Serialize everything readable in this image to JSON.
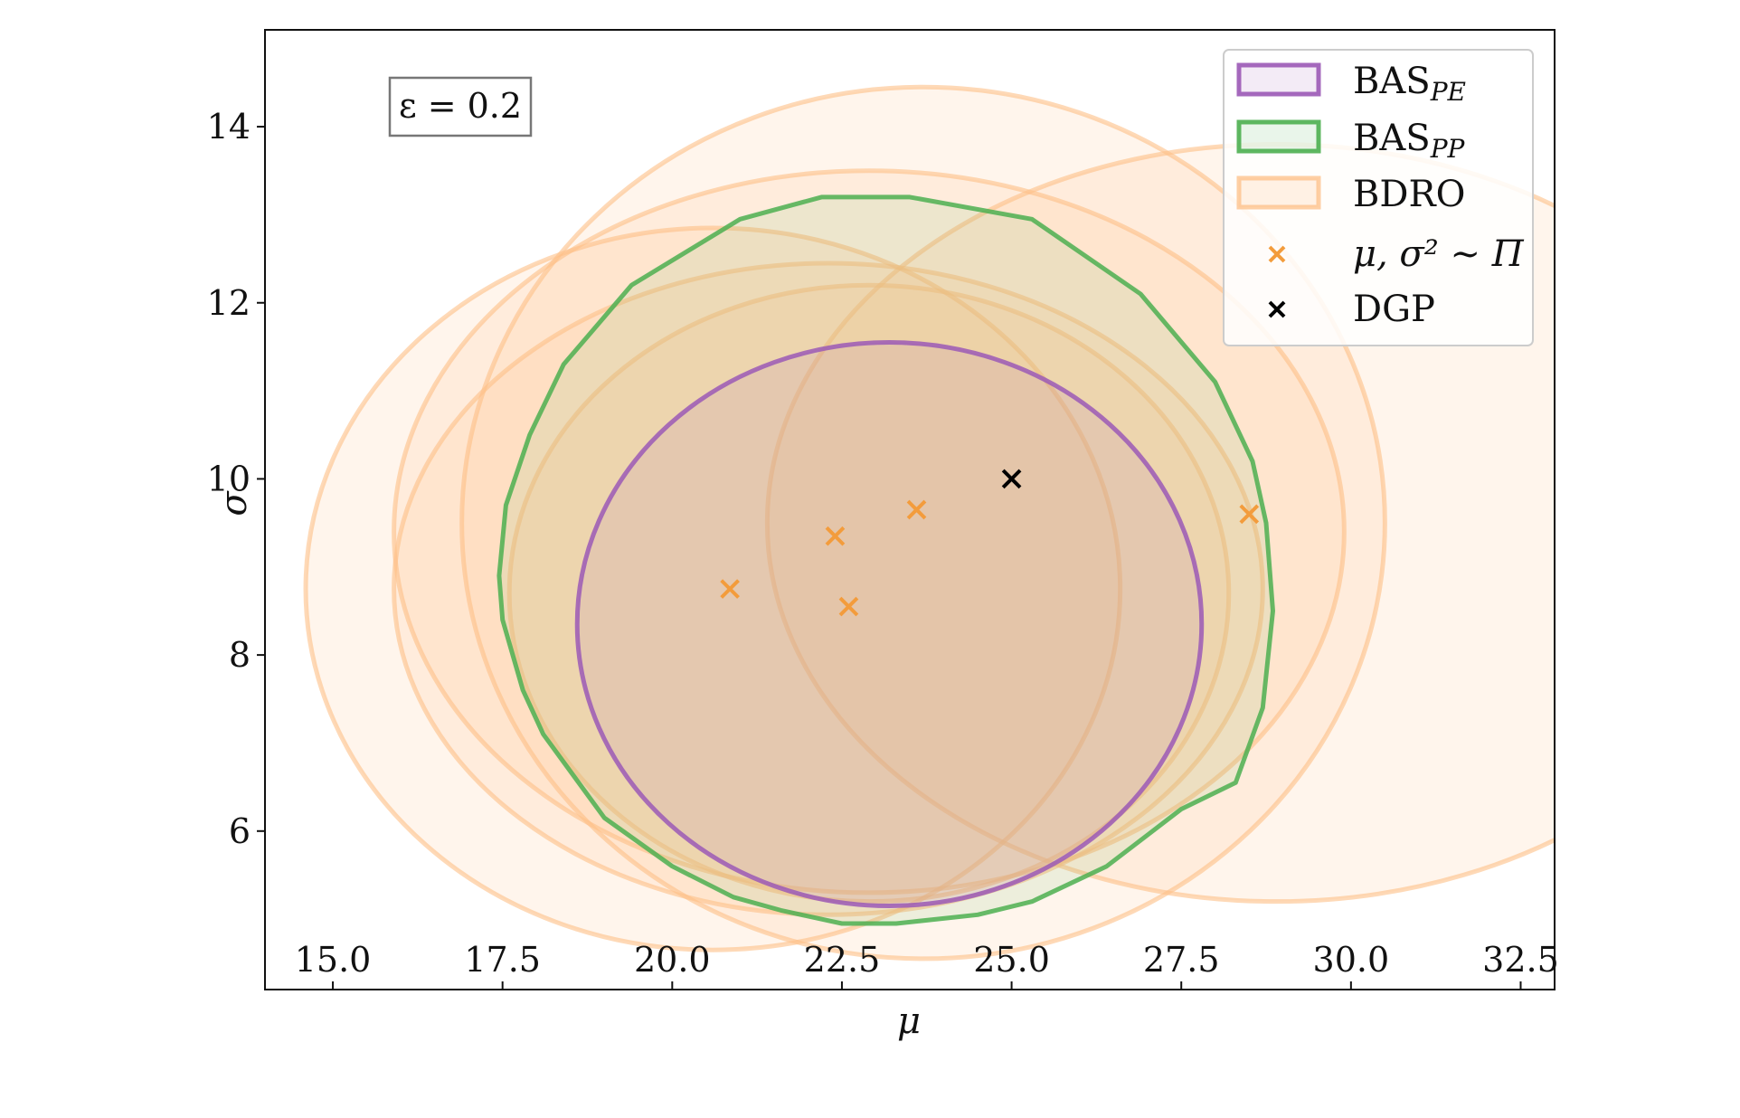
{
  "chart_data": {
    "type": "scatter",
    "title": "",
    "xlabel": "μ",
    "ylabel": "σ",
    "xlim": [
      14.0,
      33.0
    ],
    "ylim": [
      4.2,
      15.1
    ],
    "xticks": [
      15.0,
      17.5,
      20.0,
      22.5,
      25.0,
      27.5,
      30.0,
      32.5
    ],
    "xtick_labels": [
      "15.0",
      "17.5",
      "20.0",
      "22.5",
      "25.0",
      "27.5",
      "30.0",
      "32.5"
    ],
    "yticks": [
      6,
      8,
      10,
      12,
      14
    ],
    "ytick_labels": [
      "6",
      "8",
      "10",
      "12",
      "14"
    ],
    "grid": false,
    "legend_position": "top-right",
    "annotation": "ε = 0.2",
    "legend": {
      "bas_pe": "BAS",
      "bas_pe_sub": "PE",
      "bas_pp": "BAS",
      "bas_pp_sub": "PP",
      "bdro": "BDRO",
      "samples": "μ, σ² ∼ Π",
      "dgp": "DGP"
    },
    "colors": {
      "bas_pe": "#9b59b6",
      "bas_pp": "#4caf50",
      "bdro": "#fdbf87",
      "samples": "#f39c3c",
      "dgp": "#000000"
    },
    "regions": {
      "bdro": [
        {
          "cx": 20.6,
          "cy": 8.75,
          "rx": 6.0,
          "ry": 4.1
        },
        {
          "cx": 22.9,
          "cy": 9.4,
          "rx": 7.0,
          "ry": 4.1
        },
        {
          "cx": 23.7,
          "cy": 9.5,
          "rx": 6.8,
          "ry": 4.95
        },
        {
          "cx": 22.3,
          "cy": 8.75,
          "rx": 6.4,
          "ry": 3.7
        },
        {
          "cx": 28.9,
          "cy": 9.5,
          "rx": 7.5,
          "ry": 4.3
        },
        {
          "cx": 22.9,
          "cy": 8.7,
          "rx": 5.3,
          "ry": 3.5
        }
      ],
      "bas_pp": [
        [
          22.2,
          13.2
        ],
        [
          23.5,
          13.2
        ],
        [
          25.3,
          12.95
        ],
        [
          26.9,
          12.1
        ],
        [
          28.0,
          11.1
        ],
        [
          28.55,
          10.2
        ],
        [
          28.75,
          9.5
        ],
        [
          28.85,
          8.5
        ],
        [
          28.7,
          7.4
        ],
        [
          28.3,
          6.55
        ],
        [
          27.5,
          6.25
        ],
        [
          26.4,
          5.6
        ],
        [
          25.3,
          5.2
        ],
        [
          24.5,
          5.05
        ],
        [
          23.3,
          4.95
        ],
        [
          22.5,
          4.95
        ],
        [
          21.6,
          5.1
        ],
        [
          20.9,
          5.25
        ],
        [
          20.0,
          5.6
        ],
        [
          19.0,
          6.15
        ],
        [
          18.1,
          7.1
        ],
        [
          17.8,
          7.6
        ],
        [
          17.5,
          8.4
        ],
        [
          17.45,
          8.9
        ],
        [
          17.55,
          9.7
        ],
        [
          17.9,
          10.5
        ],
        [
          18.4,
          11.3
        ],
        [
          19.4,
          12.2
        ],
        [
          21.0,
          12.95
        ]
      ],
      "bas_pe": {
        "cx": 23.2,
        "cy": 8.35,
        "rx": 4.6,
        "ry": 3.2
      }
    },
    "series": [
      {
        "name": "μ, σ² ∼ Π",
        "marker": "x",
        "x": [
          20.85,
          22.4,
          22.6,
          23.6,
          28.5
        ],
        "y": [
          8.75,
          9.35,
          8.55,
          9.65,
          9.6
        ]
      },
      {
        "name": "DGP",
        "marker": "x",
        "x": [
          25.0
        ],
        "y": [
          10.0
        ]
      }
    ]
  }
}
